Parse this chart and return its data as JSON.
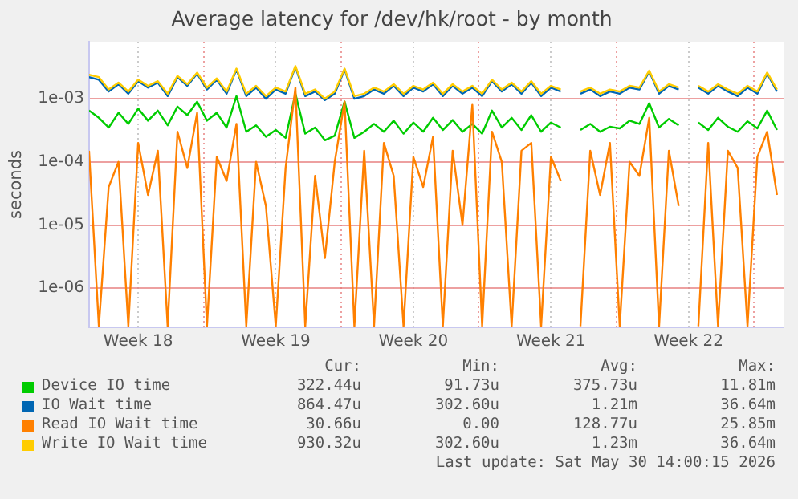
{
  "chart_data": {
    "type": "line",
    "title": "Average latency for /dev/hk/root - by month",
    "ylabel": "seconds",
    "x": [
      "2026-04-25T12:00",
      "2026-04-26T00:00",
      "2026-04-26T12:00",
      "2026-04-27T00:00",
      "2026-04-27T12:00",
      "2026-04-28T00:00",
      "2026-04-28T12:00",
      "2026-04-29T00:00",
      "2026-04-29T12:00",
      "2026-04-30T00:00",
      "2026-04-30T12:00",
      "2026-05-01T00:00",
      "2026-05-01T12:00",
      "2026-05-02T00:00",
      "2026-05-02T12:00",
      "2026-05-03T00:00",
      "2026-05-03T12:00",
      "2026-05-04T00:00",
      "2026-05-04T12:00",
      "2026-05-05T00:00",
      "2026-05-05T12:00",
      "2026-05-06T00:00",
      "2026-05-06T12:00",
      "2026-05-07T00:00",
      "2026-05-07T12:00",
      "2026-05-08T00:00",
      "2026-05-08T12:00",
      "2026-05-09T00:00",
      "2026-05-09T12:00",
      "2026-05-10T00:00",
      "2026-05-10T12:00",
      "2026-05-11T00:00",
      "2026-05-11T12:00",
      "2026-05-12T00:00",
      "2026-05-12T12:00",
      "2026-05-13T00:00",
      "2026-05-13T12:00",
      "2026-05-14T00:00",
      "2026-05-14T12:00",
      "2026-05-15T00:00",
      "2026-05-15T12:00",
      "2026-05-16T00:00",
      "2026-05-16T12:00",
      "2026-05-17T00:00",
      "2026-05-17T12:00",
      "2026-05-18T00:00",
      "2026-05-18T12:00",
      "2026-05-19T00:00",
      "2026-05-19T12:00",
      "2026-05-20T00:00",
      "2026-05-20T12:00",
      "2026-05-21T00:00",
      "2026-05-21T12:00",
      "2026-05-22T00:00",
      "2026-05-22T12:00",
      "2026-05-23T00:00",
      "2026-05-23T12:00",
      "2026-05-24T00:00",
      "2026-05-24T12:00",
      "2026-05-25T00:00",
      "2026-05-25T12:00",
      "2026-05-26T00:00",
      "2026-05-26T12:00",
      "2026-05-27T00:00",
      "2026-05-27T12:00",
      "2026-05-28T00:00",
      "2026-05-28T12:00",
      "2026-05-29T00:00",
      "2026-05-29T12:00",
      "2026-05-30T00:00",
      "2026-05-30T12:00"
    ],
    "series": [
      {
        "name": "Device IO time",
        "color": "#00cc00",
        "values": [
          0.00065,
          0.0005,
          0.00035,
          0.0006,
          0.0004,
          0.0007,
          0.00045,
          0.00065,
          0.00038,
          0.00075,
          0.00055,
          0.0009,
          0.00045,
          0.0006,
          0.00035,
          0.0011,
          0.0003,
          0.00038,
          0.00025,
          0.00032,
          0.00024,
          0.0012,
          0.00028,
          0.00035,
          0.00022,
          0.00026,
          0.0009,
          0.00024,
          0.0003,
          0.0004,
          0.0003,
          0.00045,
          0.00028,
          0.00042,
          0.0003,
          0.0005,
          0.00032,
          0.00046,
          0.0003,
          0.0004,
          0.00028,
          0.00065,
          0.00035,
          0.0005,
          0.00032,
          0.00055,
          0.0003,
          0.00042,
          0.00035,
          null,
          0.00032,
          0.0004,
          0.0003,
          0.00036,
          0.00034,
          0.00045,
          0.0004,
          0.00085,
          0.00035,
          0.00048,
          0.00038,
          null,
          0.00042,
          0.00032,
          0.0005,
          0.00036,
          0.0003,
          0.00044,
          0.00034,
          0.00065,
          0.00032
        ]
      },
      {
        "name": "IO Wait time",
        "color": "#0066b3",
        "values": [
          0.0022,
          0.002,
          0.0013,
          0.0017,
          0.0012,
          0.0019,
          0.0015,
          0.0018,
          0.0011,
          0.0022,
          0.0016,
          0.0025,
          0.0014,
          0.002,
          0.0012,
          0.0029,
          0.0011,
          0.0015,
          0.001,
          0.0014,
          0.0012,
          0.0032,
          0.0011,
          0.0013,
          0.00095,
          0.0012,
          0.0029,
          0.001,
          0.0011,
          0.0014,
          0.0012,
          0.0016,
          0.0011,
          0.0015,
          0.0013,
          0.0017,
          0.0011,
          0.0016,
          0.0012,
          0.0015,
          0.0011,
          0.0019,
          0.0013,
          0.0017,
          0.0012,
          0.0018,
          0.0011,
          0.0015,
          0.0013,
          null,
          0.0012,
          0.0014,
          0.0011,
          0.0013,
          0.0012,
          0.0015,
          0.0014,
          0.0027,
          0.0012,
          0.0016,
          0.0014,
          null,
          0.0015,
          0.0012,
          0.0016,
          0.0013,
          0.0011,
          0.0015,
          0.0012,
          0.0025,
          0.0013
        ]
      },
      {
        "name": "Read IO Wait time",
        "color": "#ff8000",
        "values": [
          0.00015,
          2.5e-07,
          4e-05,
          0.0001,
          2.5e-07,
          0.0002,
          3e-05,
          0.00015,
          2.5e-07,
          0.0003,
          8e-05,
          0.0006,
          2.5e-07,
          0.00012,
          5e-05,
          0.0004,
          2.5e-07,
          0.0001,
          2e-05,
          2.5e-07,
          8e-05,
          0.0015,
          2.5e-07,
          6e-05,
          3e-06,
          0.0001,
          0.0009,
          2.5e-07,
          0.00015,
          2.5e-07,
          0.0002,
          6e-05,
          2.5e-07,
          0.00012,
          4e-05,
          0.00025,
          2.5e-07,
          0.00015,
          1e-05,
          0.0008,
          2.5e-07,
          0.0003,
          0.0001,
          2.5e-07,
          0.00015,
          0.0002,
          2.5e-07,
          0.00012,
          5e-05,
          null,
          2.5e-07,
          0.00015,
          3e-05,
          0.0002,
          2.5e-07,
          0.0001,
          6e-05,
          0.0005,
          2.5e-07,
          0.00015,
          2e-05,
          null,
          2.5e-07,
          0.0002,
          2.5e-07,
          0.00015,
          8e-05,
          2.5e-07,
          0.00012,
          0.0003,
          3e-05
        ]
      },
      {
        "name": "Write IO Wait time",
        "color": "#ffcc00",
        "values": [
          0.0024,
          0.0022,
          0.0014,
          0.0018,
          0.0013,
          0.002,
          0.0016,
          0.0019,
          0.0012,
          0.0023,
          0.0017,
          0.0026,
          0.0015,
          0.0021,
          0.0013,
          0.003,
          0.0012,
          0.0016,
          0.0011,
          0.0015,
          0.0013,
          0.0033,
          0.0012,
          0.0014,
          0.001,
          0.0013,
          0.003,
          0.0011,
          0.0012,
          0.0015,
          0.0013,
          0.0017,
          0.0012,
          0.0016,
          0.0014,
          0.0018,
          0.0012,
          0.0017,
          0.0013,
          0.0016,
          0.0012,
          0.002,
          0.0014,
          0.0018,
          0.0013,
          0.0019,
          0.0012,
          0.0016,
          0.0014,
          null,
          0.0013,
          0.0015,
          0.0012,
          0.0014,
          0.0013,
          0.0016,
          0.0015,
          0.0028,
          0.0013,
          0.0017,
          0.0015,
          null,
          0.0016,
          0.0013,
          0.0017,
          0.0014,
          0.0012,
          0.0016,
          0.0013,
          0.0026,
          0.0014
        ]
      }
    ],
    "log": "y",
    "ylim": [
      2.4e-07,
      0.008
    ],
    "yticks": [
      {
        "value": 1e-06,
        "label": "1e-06"
      },
      {
        "value": 1e-05,
        "label": "1e-05"
      },
      {
        "value": 0.0001,
        "label": "1e-04"
      },
      {
        "value": 0.001,
        "label": "1e-03"
      }
    ],
    "xlim": [
      "2026-04-25T12:00",
      "2026-05-30T20:00"
    ],
    "xticks": [
      {
        "value": "2026-04-28T00:00",
        "label": "Week 18"
      },
      {
        "value": "2026-05-01T08:00",
        "label": null
      },
      {
        "value": "2026-05-05T00:00",
        "label": "Week 19"
      },
      {
        "value": "2026-05-08T08:00",
        "label": null
      },
      {
        "value": "2026-05-12T00:00",
        "label": "Week 20"
      },
      {
        "value": "2026-05-15T08:00",
        "label": null
      },
      {
        "value": "2026-05-19T00:00",
        "label": "Week 21"
      },
      {
        "value": "2026-05-22T08:00",
        "label": null
      },
      {
        "value": "2026-05-26T00:00",
        "label": "Week 22"
      },
      {
        "value": "2026-05-29T08:00",
        "label": null
      }
    ],
    "grid": true,
    "legend": "bottom",
    "marker": "none",
    "line_style": "solid",
    "annotations": [
      "Cur:",
      "Min:",
      "Avg:",
      "Max:",
      "322.44u",
      "91.73u",
      "375.73u",
      "11.81m",
      "864.47u",
      "302.60u",
      "1.21m",
      "36.64m",
      "30.66u",
      "0.00",
      "128.77u",
      "25.85m",
      "930.32u",
      "302.60u",
      "1.23m",
      "36.64m",
      "Last update: Sat May 30 14:00:15 2026"
    ]
  }
}
